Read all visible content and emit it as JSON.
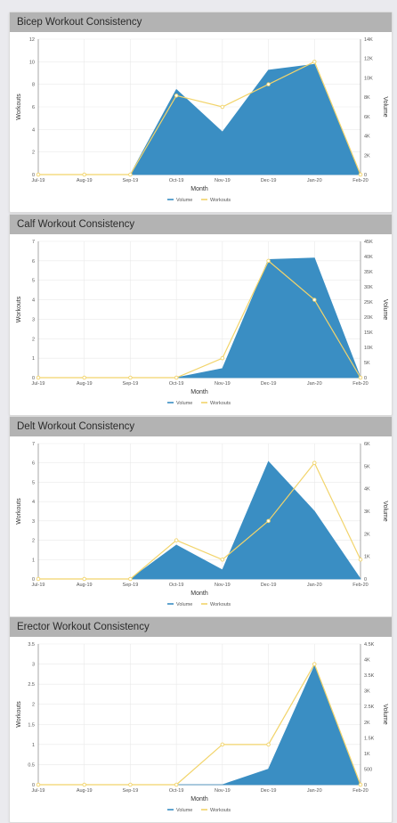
{
  "colors": {
    "volume": "#3a8ec3",
    "workouts": "#f2d46b",
    "grid": "#e9e9e9"
  },
  "chart_data": [
    {
      "type": "area",
      "title": "Bicep Workout Consistency",
      "xlabel": "Month",
      "ylabel": "Workouts",
      "y2label": "Volume",
      "categories": [
        "Jul-19",
        "Aug-19",
        "Sep-19",
        "Oct-19",
        "Nov-19",
        "Dec-19",
        "Jan-20",
        "Feb-20"
      ],
      "ylim": [
        0,
        12
      ],
      "yticks": [
        "0",
        "2",
        "4",
        "6",
        "8",
        "10",
        "12"
      ],
      "y2lim": [
        0,
        14000
      ],
      "y2ticks": [
        "0",
        "2K",
        "4K",
        "6K",
        "8K",
        "10K",
        "12K",
        "14K"
      ],
      "series": [
        {
          "name": "Volume",
          "kind": "area",
          "axis": "right",
          "values": [
            0,
            0,
            0,
            8800,
            4400,
            10800,
            11400,
            0
          ]
        },
        {
          "name": "Workouts",
          "kind": "line",
          "axis": "left",
          "values": [
            0,
            0,
            0,
            7,
            6,
            8,
            10,
            0
          ]
        }
      ],
      "legend": "bottom"
    },
    {
      "type": "area",
      "title": "Calf Workout Consistency",
      "xlabel": "Month",
      "ylabel": "Workouts",
      "y2label": "Volume",
      "categories": [
        "Jul-19",
        "Aug-19",
        "Sep-19",
        "Oct-19",
        "Nov-19",
        "Dec-19",
        "Jan-20",
        "Feb-20"
      ],
      "ylim": [
        0,
        7
      ],
      "yticks": [
        "0",
        "1",
        "2",
        "3",
        "4",
        "5",
        "6",
        "7"
      ],
      "y2lim": [
        0,
        45000
      ],
      "y2ticks": [
        "0",
        "5K",
        "10K",
        "15K",
        "20K",
        "25K",
        "30K",
        "35K",
        "40K",
        "45K"
      ],
      "series": [
        {
          "name": "Volume",
          "kind": "area",
          "axis": "right",
          "values": [
            0,
            0,
            0,
            0,
            3000,
            39000,
            39500,
            0
          ]
        },
        {
          "name": "Workouts",
          "kind": "line",
          "axis": "left",
          "values": [
            0,
            0,
            0,
            0,
            1,
            6,
            4,
            0
          ]
        }
      ],
      "legend": "bottom"
    },
    {
      "type": "area",
      "title": "Delt Workout Consistency",
      "xlabel": "Month",
      "ylabel": "Workouts",
      "y2label": "Volume",
      "categories": [
        "Jul-19",
        "Aug-19",
        "Sep-19",
        "Oct-19",
        "Nov-19",
        "Dec-19",
        "Jan-20",
        "Feb-20"
      ],
      "ylim": [
        0,
        7
      ],
      "yticks": [
        "0",
        "1",
        "2",
        "3",
        "4",
        "5",
        "6",
        "7"
      ],
      "y2lim": [
        0,
        6000
      ],
      "y2ticks": [
        "0",
        "1K",
        "2K",
        "3K",
        "4K",
        "5K",
        "6K"
      ],
      "series": [
        {
          "name": "Volume",
          "kind": "area",
          "axis": "right",
          "values": [
            0,
            0,
            0,
            1500,
            400,
            5200,
            3000,
            0
          ]
        },
        {
          "name": "Workouts",
          "kind": "line",
          "axis": "left",
          "values": [
            0,
            0,
            0,
            2,
            1,
            3,
            6,
            1
          ]
        }
      ],
      "legend": "bottom"
    },
    {
      "type": "area",
      "title": "Erector Workout Consistency",
      "xlabel": "Month",
      "ylabel": "Workouts",
      "y2label": "Volume",
      "categories": [
        "Jul-19",
        "Aug-19",
        "Sep-19",
        "Oct-19",
        "Nov-19",
        "Dec-19",
        "Jan-20",
        "Feb-20"
      ],
      "ylim": [
        0,
        3.5
      ],
      "yticks": [
        "0",
        "0.5",
        "1",
        "1.5",
        "2",
        "2.5",
        "3",
        "3.5"
      ],
      "y2lim": [
        0,
        4500
      ],
      "y2ticks": [
        "0",
        "500",
        "1K",
        "1.5K",
        "2K",
        "2.5K",
        "3K",
        "3.5K",
        "4K",
        "4.5K"
      ],
      "series": [
        {
          "name": "Volume",
          "kind": "area",
          "axis": "right",
          "values": [
            0,
            0,
            0,
            0,
            0,
            500,
            3800,
            0
          ]
        },
        {
          "name": "Workouts",
          "kind": "line",
          "axis": "left",
          "values": [
            0,
            0,
            0,
            0,
            1,
            1,
            3,
            0
          ]
        }
      ],
      "legend": "bottom"
    }
  ]
}
